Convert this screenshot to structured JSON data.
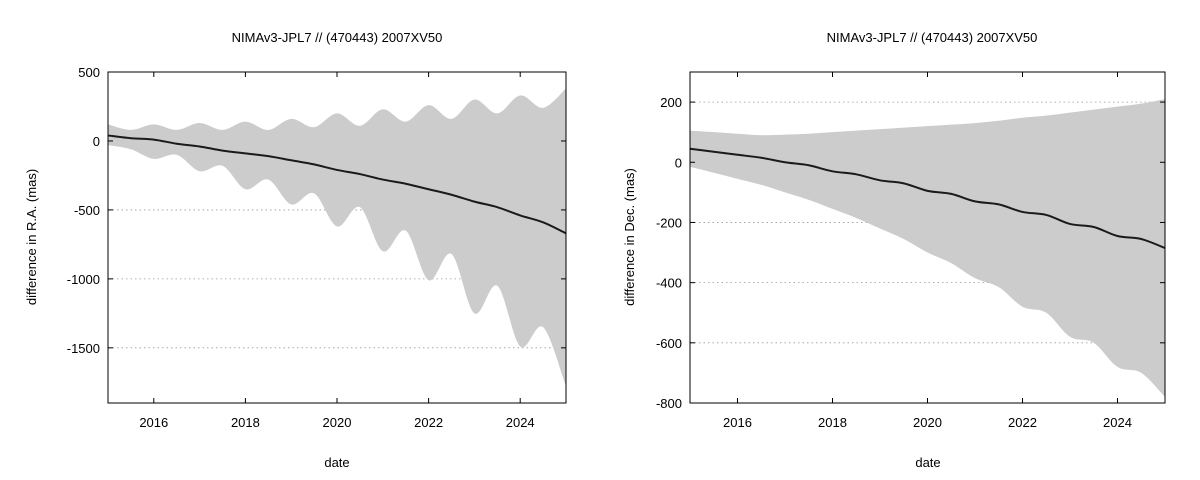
{
  "chart_data": [
    {
      "type": "line",
      "title": "NIMAv3-JPL7 // (470443) 2007XV50",
      "xlabel": "date",
      "ylabel": "difference in R.A. (mas)",
      "xlim": [
        2015.0,
        2025.0
      ],
      "ylim": [
        -1900,
        500
      ],
      "xticks": [
        2016,
        2018,
        2020,
        2022,
        2024
      ],
      "yticks": [
        500,
        0,
        -500,
        -1000,
        -1500
      ],
      "grid": "horizontal dotted",
      "colors": {
        "line": "#1a1a1a",
        "band": "#cccccc"
      },
      "series": [
        {
          "kind": "line",
          "x": [
            2015.0,
            2015.5,
            2016.0,
            2016.5,
            2017.0,
            2017.5,
            2018.0,
            2018.5,
            2019.0,
            2019.5,
            2020.0,
            2020.5,
            2021.0,
            2021.5,
            2022.0,
            2022.5,
            2023.0,
            2023.5,
            2024.0,
            2024.5,
            2025.0
          ],
          "y": [
            40,
            20,
            10,
            -20,
            -40,
            -70,
            -90,
            -110,
            -140,
            -170,
            -210,
            -240,
            -280,
            -310,
            -350,
            -390,
            -440,
            -480,
            -540,
            -590,
            -670
          ]
        },
        {
          "kind": "band",
          "x": [
            2015.0,
            2015.5,
            2016.0,
            2016.5,
            2017.0,
            2017.5,
            2018.0,
            2018.5,
            2019.0,
            2019.5,
            2020.0,
            2020.5,
            2021.0,
            2021.5,
            2022.0,
            2022.5,
            2023.0,
            2023.5,
            2024.0,
            2024.5,
            2025.0
          ],
          "upper": [
            120,
            80,
            120,
            80,
            130,
            80,
            140,
            80,
            160,
            100,
            200,
            110,
            230,
            140,
            260,
            160,
            300,
            200,
            330,
            240,
            380
          ],
          "lower": [
            -30,
            -60,
            -130,
            -100,
            -220,
            -180,
            -350,
            -280,
            -460,
            -380,
            -620,
            -480,
            -800,
            -650,
            -1010,
            -820,
            -1250,
            -1050,
            -1490,
            -1350,
            -1780
          ]
        }
      ]
    },
    {
      "type": "line",
      "title": "NIMAv3-JPL7 // (470443) 2007XV50",
      "xlabel": "date",
      "ylabel": "difference in Dec. (mas)",
      "xlim": [
        2015.0,
        2025.0
      ],
      "ylim": [
        -800,
        300
      ],
      "xticks": [
        2016,
        2018,
        2020,
        2022,
        2024
      ],
      "yticks": [
        200,
        0,
        -200,
        -400,
        -600,
        -800
      ],
      "grid": "horizontal dotted",
      "colors": {
        "line": "#1a1a1a",
        "band": "#cccccc"
      },
      "series": [
        {
          "kind": "line",
          "x": [
            2015.0,
            2015.5,
            2016.0,
            2016.5,
            2017.0,
            2017.5,
            2018.0,
            2018.5,
            2019.0,
            2019.5,
            2020.0,
            2020.5,
            2021.0,
            2021.5,
            2022.0,
            2022.5,
            2023.0,
            2023.5,
            2024.0,
            2024.5,
            2025.0
          ],
          "y": [
            45,
            35,
            25,
            15,
            0,
            -10,
            -30,
            -40,
            -60,
            -70,
            -95,
            -105,
            -130,
            -140,
            -165,
            -175,
            -205,
            -215,
            -245,
            -255,
            -285
          ]
        },
        {
          "kind": "band",
          "x": [
            2015.0,
            2015.5,
            2016.0,
            2016.5,
            2017.0,
            2017.5,
            2018.0,
            2018.5,
            2019.0,
            2019.5,
            2020.0,
            2020.5,
            2021.0,
            2021.5,
            2022.0,
            2022.5,
            2023.0,
            2023.5,
            2024.0,
            2024.5,
            2025.0
          ],
          "upper": [
            105,
            100,
            95,
            90,
            92,
            95,
            100,
            105,
            110,
            115,
            120,
            125,
            130,
            138,
            148,
            155,
            165,
            175,
            185,
            195,
            210
          ],
          "lower": [
            -15,
            -35,
            -55,
            -75,
            -100,
            -125,
            -155,
            -185,
            -220,
            -255,
            -300,
            -335,
            -385,
            -415,
            -480,
            -500,
            -580,
            -600,
            -680,
            -700,
            -780
          ]
        }
      ]
    }
  ]
}
